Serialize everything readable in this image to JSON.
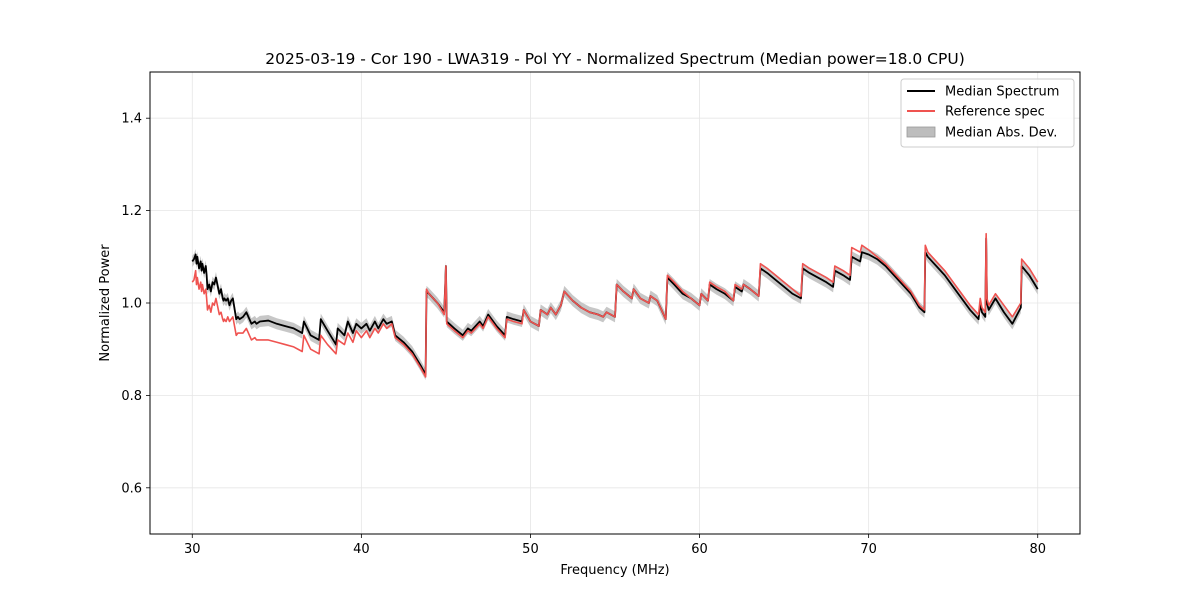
{
  "chart_data": {
    "type": "line",
    "title": "2025-03-19 - Cor 190 - LWA319 - Pol YY - Normalized Spectrum (Median power=18.0 CPU)",
    "xlabel": "Frequency (MHz)",
    "ylabel": "Normalized Power",
    "xlim": [
      27.5,
      82.5
    ],
    "ylim": [
      0.5,
      1.5
    ],
    "xticks": [
      30,
      40,
      50,
      60,
      70,
      80
    ],
    "yticks": [
      0.6,
      0.8,
      1.0,
      1.2,
      1.4
    ],
    "xtick_labels": [
      "30",
      "40",
      "50",
      "60",
      "70",
      "80"
    ],
    "ytick_labels": [
      "0.6",
      "0.8",
      "1.0",
      "1.2",
      "1.4"
    ],
    "grid": true,
    "legend": {
      "placement": "top-right",
      "entries": [
        {
          "label": "Median Spectrum",
          "kind": "line",
          "color": "#000000"
        },
        {
          "label": "Reference spec",
          "kind": "line",
          "color": "#ef5350"
        },
        {
          "label": "Median Abs. Dev.",
          "kind": "band",
          "color": "#bdbdbd"
        }
      ]
    },
    "median_abs_dev_halfwidth": 0.012,
    "series": [
      {
        "name": "Median Spectrum",
        "color": "#000000",
        "x": [
          30.0,
          30.1,
          30.2,
          30.25,
          30.3,
          30.4,
          30.5,
          30.55,
          30.6,
          30.7,
          30.8,
          30.85,
          30.9,
          31.0,
          31.1,
          31.2,
          31.3,
          31.4,
          31.6,
          31.7,
          31.8,
          31.85,
          31.9,
          32.0,
          32.1,
          32.2,
          32.3,
          32.4,
          32.6,
          32.7,
          32.8,
          33.0,
          33.2,
          33.5,
          33.7,
          33.8,
          34.0,
          34.5,
          35.0,
          35.5,
          36.0,
          36.5,
          36.6,
          37.0,
          37.5,
          37.6,
          38.0,
          38.5,
          38.6,
          39.0,
          39.2,
          39.5,
          39.7,
          40.0,
          40.3,
          40.5,
          40.8,
          41.0,
          41.3,
          41.5,
          41.8,
          42.0,
          42.5,
          43.0,
          43.5,
          43.8,
          43.85,
          44.0,
          44.5,
          44.9,
          45.0,
          45.05,
          45.2,
          45.5,
          46.0,
          46.3,
          46.5,
          47.0,
          47.2,
          47.5,
          48.0,
          48.5,
          48.6,
          49.0,
          49.5,
          49.6,
          50.0,
          50.5,
          50.6,
          51.0,
          51.2,
          51.5,
          51.8,
          52.0,
          52.5,
          53.0,
          53.5,
          54.0,
          54.3,
          54.5,
          55.0,
          55.1,
          55.5,
          56.0,
          56.1,
          56.5,
          57.0,
          57.1,
          57.5,
          58.0,
          58.1,
          58.5,
          59.0,
          59.5,
          60.0,
          60.1,
          60.5,
          60.6,
          61.0,
          61.5,
          62.0,
          62.1,
          62.5,
          62.6,
          63.0,
          63.5,
          63.6,
          64.0,
          64.5,
          65.0,
          65.5,
          66.0,
          66.1,
          66.5,
          67.0,
          67.5,
          67.9,
          68.0,
          68.5,
          68.9,
          69.0,
          69.5,
          69.6,
          70.0,
          70.5,
          71.0,
          71.5,
          72.0,
          72.5,
          73.0,
          73.3,
          73.35,
          73.5,
          74.0,
          74.5,
          75.0,
          75.5,
          76.0,
          76.5,
          76.6,
          76.7,
          76.9,
          76.95,
          77.0,
          77.1,
          77.5,
          78.0,
          78.5,
          79.0,
          79.05,
          79.5,
          80.0
        ],
        "values": [
          1.09,
          1.095,
          1.105,
          1.085,
          1.1,
          1.075,
          1.09,
          1.07,
          1.085,
          1.065,
          1.08,
          1.06,
          1.03,
          1.04,
          1.025,
          1.045,
          1.04,
          1.055,
          1.02,
          1.03,
          1.01,
          1.005,
          1.01,
          1.005,
          1.01,
          0.995,
          1.005,
          1.01,
          0.965,
          0.97,
          0.965,
          0.97,
          0.98,
          0.955,
          0.96,
          0.955,
          0.96,
          0.962,
          0.955,
          0.95,
          0.945,
          0.935,
          0.96,
          0.93,
          0.92,
          0.965,
          0.94,
          0.91,
          0.945,
          0.93,
          0.96,
          0.935,
          0.955,
          0.945,
          0.955,
          0.94,
          0.96,
          0.945,
          0.965,
          0.955,
          0.96,
          0.93,
          0.915,
          0.895,
          0.865,
          0.845,
          1.025,
          1.02,
          1.0,
          0.98,
          1.08,
          0.96,
          0.955,
          0.945,
          0.93,
          0.945,
          0.94,
          0.96,
          0.95,
          0.975,
          0.95,
          0.93,
          0.97,
          0.965,
          0.96,
          0.985,
          0.96,
          0.95,
          0.985,
          0.975,
          0.99,
          0.975,
          0.995,
          1.025,
          1.005,
          0.99,
          0.98,
          0.975,
          0.97,
          0.98,
          0.97,
          1.04,
          1.025,
          1.01,
          1.03,
          1.01,
          1.0,
          1.015,
          1.005,
          0.965,
          1.055,
          1.04,
          1.02,
          1.01,
          0.995,
          1.02,
          1.005,
          1.04,
          1.03,
          1.02,
          1.005,
          1.035,
          1.025,
          1.04,
          1.03,
          1.015,
          1.075,
          1.065,
          1.05,
          1.035,
          1.02,
          1.01,
          1.075,
          1.065,
          1.055,
          1.045,
          1.035,
          1.07,
          1.06,
          1.05,
          1.1,
          1.09,
          1.11,
          1.105,
          1.095,
          1.08,
          1.06,
          1.04,
          1.02,
          0.99,
          0.98,
          1.11,
          1.1,
          1.08,
          1.06,
          1.035,
          1.01,
          0.985,
          0.965,
          1.0,
          0.98,
          0.97,
          1.14,
          1.0,
          0.985,
          1.01,
          0.98,
          0.955,
          0.99,
          1.08,
          1.06,
          1.03
        ]
      },
      {
        "name": "Reference spec",
        "color": "#ef5350",
        "x": [
          30.0,
          30.1,
          30.2,
          30.25,
          30.3,
          30.4,
          30.5,
          30.55,
          30.6,
          30.7,
          30.8,
          30.85,
          30.9,
          31.0,
          31.1,
          31.2,
          31.3,
          31.4,
          31.6,
          31.7,
          31.8,
          31.85,
          31.9,
          32.0,
          32.1,
          32.2,
          32.3,
          32.4,
          32.6,
          32.7,
          32.8,
          33.0,
          33.2,
          33.5,
          33.7,
          33.8,
          34.0,
          34.5,
          35.0,
          35.5,
          36.0,
          36.5,
          36.6,
          37.0,
          37.5,
          37.6,
          38.0,
          38.5,
          38.6,
          39.0,
          39.2,
          39.5,
          39.7,
          40.0,
          40.3,
          40.5,
          40.8,
          41.0,
          41.3,
          41.5,
          41.8,
          42.0,
          42.5,
          43.0,
          43.5,
          43.8,
          43.85,
          44.0,
          44.5,
          44.9,
          45.0,
          45.05,
          45.2,
          45.5,
          46.0,
          46.3,
          46.5,
          47.0,
          47.2,
          47.5,
          48.0,
          48.5,
          48.6,
          49.0,
          49.5,
          49.6,
          50.0,
          50.5,
          50.6,
          51.0,
          51.2,
          51.5,
          51.8,
          52.0,
          52.5,
          53.0,
          53.5,
          54.0,
          54.3,
          54.5,
          55.0,
          55.1,
          55.5,
          56.0,
          56.1,
          56.5,
          57.0,
          57.1,
          57.5,
          58.0,
          58.1,
          58.5,
          59.0,
          59.5,
          60.0,
          60.1,
          60.5,
          60.6,
          61.0,
          61.5,
          62.0,
          62.1,
          62.5,
          62.6,
          63.0,
          63.5,
          63.6,
          64.0,
          64.5,
          65.0,
          65.5,
          66.0,
          66.1,
          66.5,
          67.0,
          67.5,
          67.9,
          68.0,
          68.5,
          68.9,
          69.0,
          69.5,
          69.6,
          70.0,
          70.5,
          71.0,
          71.5,
          72.0,
          72.5,
          73.0,
          73.3,
          73.35,
          73.5,
          74.0,
          74.5,
          75.0,
          75.5,
          76.0,
          76.5,
          76.6,
          76.7,
          76.9,
          76.95,
          77.0,
          77.1,
          77.5,
          78.0,
          78.5,
          79.0,
          79.05,
          79.5,
          80.0
        ],
        "values": [
          1.045,
          1.05,
          1.07,
          1.04,
          1.055,
          1.03,
          1.045,
          1.025,
          1.04,
          1.02,
          1.03,
          1.01,
          0.985,
          0.995,
          0.98,
          1.0,
          0.995,
          1.01,
          0.975,
          0.98,
          0.965,
          0.96,
          0.965,
          0.96,
          0.97,
          0.96,
          0.965,
          0.97,
          0.93,
          0.935,
          0.935,
          0.935,
          0.945,
          0.92,
          0.925,
          0.92,
          0.92,
          0.92,
          0.915,
          0.91,
          0.905,
          0.895,
          0.93,
          0.9,
          0.89,
          0.93,
          0.91,
          0.89,
          0.92,
          0.91,
          0.935,
          0.915,
          0.94,
          0.925,
          0.94,
          0.925,
          0.945,
          0.935,
          0.955,
          0.945,
          0.955,
          0.925,
          0.91,
          0.89,
          0.86,
          0.84,
          1.03,
          1.02,
          1.0,
          0.975,
          1.08,
          0.955,
          0.95,
          0.94,
          0.925,
          0.94,
          0.935,
          0.955,
          0.945,
          0.97,
          0.945,
          0.925,
          0.965,
          0.96,
          0.955,
          0.985,
          0.96,
          0.95,
          0.985,
          0.975,
          0.99,
          0.975,
          0.995,
          1.025,
          1.005,
          0.99,
          0.98,
          0.975,
          0.97,
          0.98,
          0.97,
          1.04,
          1.025,
          1.01,
          1.03,
          1.01,
          1.0,
          1.015,
          1.005,
          0.965,
          1.06,
          1.045,
          1.025,
          1.01,
          0.995,
          1.02,
          1.005,
          1.045,
          1.035,
          1.025,
          1.005,
          1.04,
          1.03,
          1.04,
          1.03,
          1.015,
          1.085,
          1.075,
          1.06,
          1.045,
          1.03,
          1.015,
          1.085,
          1.075,
          1.065,
          1.055,
          1.045,
          1.08,
          1.07,
          1.06,
          1.12,
          1.11,
          1.125,
          1.115,
          1.1,
          1.085,
          1.065,
          1.045,
          1.025,
          0.995,
          0.985,
          1.125,
          1.11,
          1.09,
          1.07,
          1.045,
          1.02,
          0.995,
          0.975,
          1.01,
          0.99,
          0.98,
          1.15,
          1.01,
          0.995,
          1.02,
          0.995,
          0.97,
          1.0,
          1.095,
          1.075,
          1.045
        ]
      }
    ]
  }
}
